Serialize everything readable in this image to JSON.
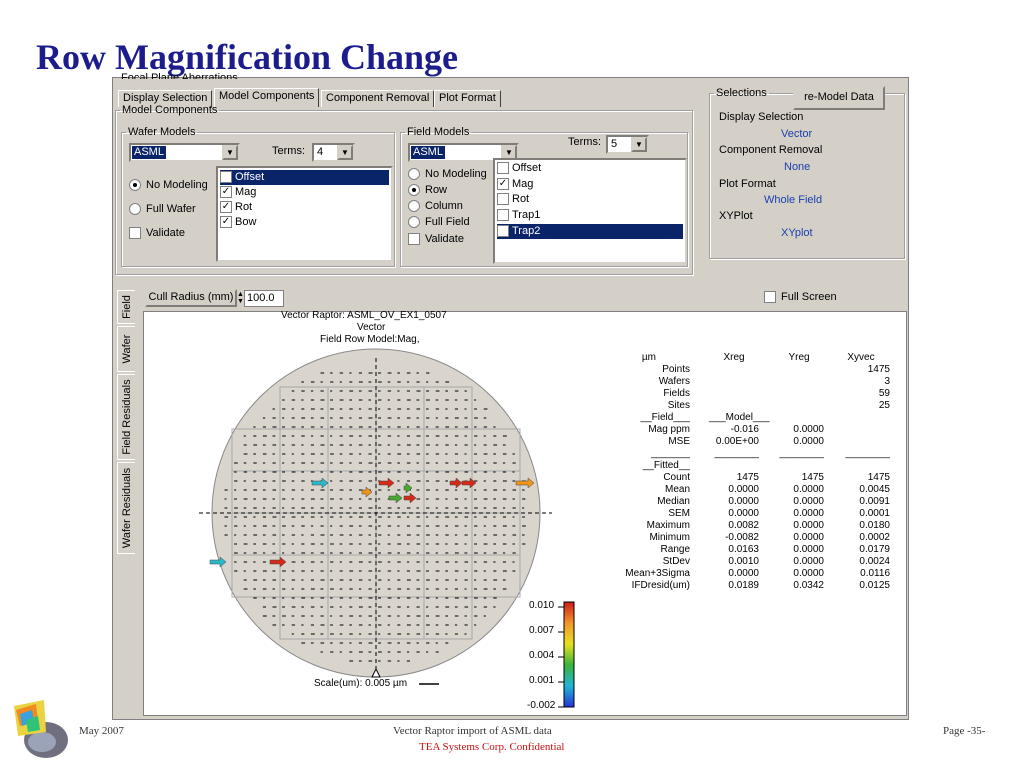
{
  "slide_title": "Row Magnification Change",
  "app": {
    "top_cut_label": "Focal Plane Aberrations",
    "tabs": [
      "Display Selection",
      "Model Components",
      "Component Removal",
      "Plot Format"
    ],
    "model_components_legend": "Model Components",
    "wafer_models": {
      "legend": "Wafer Models",
      "model_value": "ASML",
      "terms_label": "Terms:",
      "terms_value": "4",
      "radios": [
        {
          "label": "No Modeling",
          "checked": true
        },
        {
          "label": "Full Wafer",
          "checked": false
        }
      ],
      "validate_label": "Validate",
      "terms_list": [
        {
          "label": "Offset",
          "checked": true,
          "selected": true
        },
        {
          "label": "Mag",
          "checked": true,
          "selected": false
        },
        {
          "label": "Rot",
          "checked": true,
          "selected": false
        },
        {
          "label": "Bow",
          "checked": true,
          "selected": false
        }
      ]
    },
    "field_models": {
      "legend": "Field Models",
      "model_value": "ASML",
      "terms_label": "Terms:",
      "terms_value": "5",
      "radios": [
        {
          "label": "No Modeling",
          "checked": false
        },
        {
          "label": "Row",
          "checked": true
        },
        {
          "label": "Column",
          "checked": false
        },
        {
          "label": "Full Field",
          "checked": false
        }
      ],
      "validate_label": "Validate",
      "terms_list": [
        {
          "label": "Offset",
          "checked": false,
          "selected": false
        },
        {
          "label": "Mag",
          "checked": true,
          "selected": false
        },
        {
          "label": "Rot",
          "checked": false,
          "selected": false
        },
        {
          "label": "Trap1",
          "checked": false,
          "selected": false
        },
        {
          "label": "Trap2",
          "checked": false,
          "selected": true
        }
      ]
    },
    "selections": {
      "legend": "Selections",
      "remodel_button": "re-Model Data",
      "items": [
        {
          "label": "Display Selection",
          "value": "Vector"
        },
        {
          "label": "Component Removal",
          "value": "None"
        },
        {
          "label": "Plot Format",
          "value": "Whole Field"
        },
        {
          "label": "XYPlot",
          "value": "XYplot"
        }
      ]
    },
    "side_tabs": [
      "Field",
      "Wafer",
      "Field Residuals",
      "Wafer Residuals"
    ],
    "cull_radius_label": "Cull Radius (mm)",
    "cull_radius_value": "100.0",
    "full_screen_label": "Full Screen",
    "plot": {
      "title_lines": [
        "Vector Raptor: ASML_OV_EX1_0507",
        "Vector",
        "Field Row Model:Mag,"
      ],
      "scale_label": "Scale(um): 0.005 µm",
      "colorbar_ticks": [
        "0.010",
        "0.007",
        "0.004",
        "0.001",
        "-0.002"
      ],
      "colors": {
        "wafer_fill": "#d9d4cc",
        "arrow_red": "#d42a1a",
        "arrow_orange": "#f0941c",
        "arrow_green": "#49a832",
        "arrow_cyan": "#2bb8c8"
      }
    },
    "stats": {
      "headers": [
        "µm",
        "Xreg",
        "Yreg",
        "Xyvec"
      ],
      "rows": [
        {
          "label": "Points",
          "v": [
            "",
            "",
            "1475"
          ]
        },
        {
          "label": "Wafers",
          "v": [
            "",
            "",
            "3"
          ]
        },
        {
          "label": "Fields",
          "v": [
            "",
            "",
            "59"
          ]
        },
        {
          "label": "Sites",
          "v": [
            "",
            "",
            "25"
          ]
        },
        {
          "label": "__Field___",
          "v": [
            "___Model___",
            "",
            ""
          ]
        },
        {
          "label": "Mag ppm",
          "v": [
            "-0.016",
            "0.0000",
            ""
          ]
        },
        {
          "label": "MSE",
          "v": [
            "0.00E+00",
            "0.0000",
            ""
          ]
        },
        {
          "label": "_______",
          "v": [
            "________",
            "________",
            "________"
          ]
        },
        {
          "label": "__Fitted__",
          "v": [
            "",
            "",
            ""
          ]
        },
        {
          "label": "Count",
          "v": [
            "1475",
            "1475",
            "1475"
          ]
        },
        {
          "label": "Mean",
          "v": [
            "0.0000",
            "0.0000",
            "0.0045"
          ]
        },
        {
          "label": "Median",
          "v": [
            "0.0000",
            "0.0000",
            "0.0091"
          ]
        },
        {
          "label": "SEM",
          "v": [
            "0.0000",
            "0.0000",
            "0.0001"
          ]
        },
        {
          "label": "Maximum",
          "v": [
            "0.0082",
            "0.0000",
            "0.0180"
          ]
        },
        {
          "label": "Minimum",
          "v": [
            "-0.0082",
            "0.0000",
            "0.0002"
          ]
        },
        {
          "label": "Range",
          "v": [
            "0.0163",
            "0.0000",
            "0.0179"
          ]
        },
        {
          "label": "StDev",
          "v": [
            "0.0010",
            "0.0000",
            "0.0024"
          ]
        },
        {
          "label": "Mean+3Sigma",
          "v": [
            "0.0000",
            "0.0000",
            "0.0116"
          ]
        },
        {
          "label": "IFDresid(um)",
          "v": [
            "0.0189",
            "0.0342",
            "0.0125"
          ]
        }
      ]
    }
  },
  "footer": {
    "date": "May 2007",
    "center_line1": "Vector Raptor import of ASML data",
    "center_line2": "TEA Systems Corp. Confidential",
    "page": "Page -35-"
  }
}
